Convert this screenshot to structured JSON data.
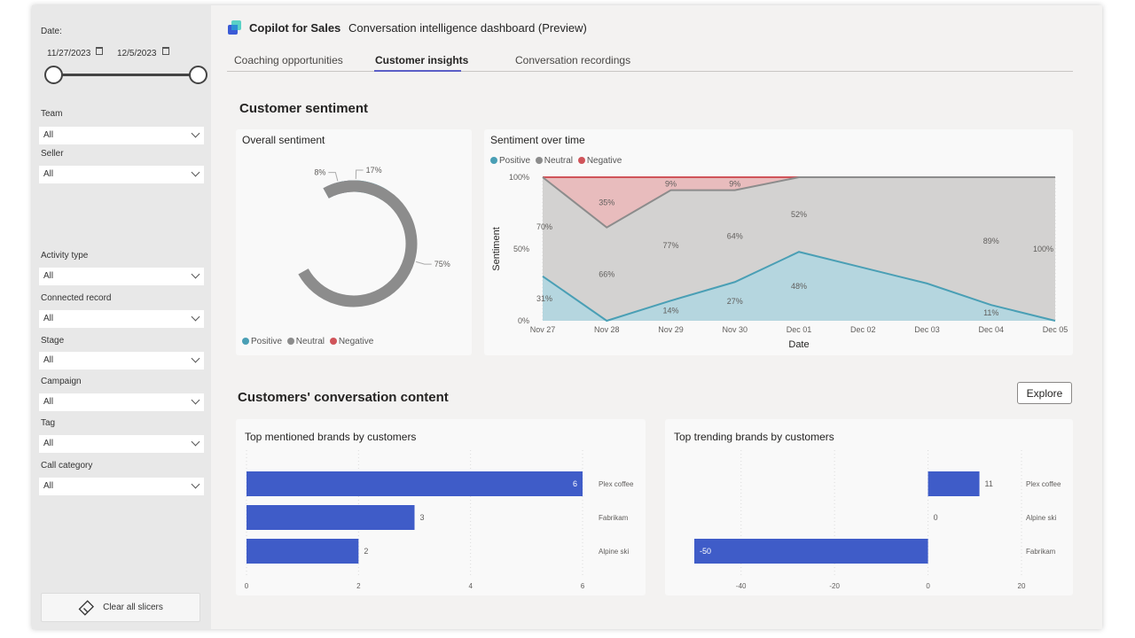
{
  "filters": {
    "date_label": "Date:",
    "start_date": "11/27/2023",
    "end_date": "12/5/2023",
    "slicers": [
      {
        "label": "Team",
        "value": "All"
      },
      {
        "label": "Seller",
        "value": "All"
      },
      {
        "label": "Activity type",
        "value": "All"
      },
      {
        "label": "Connected record",
        "value": "All"
      },
      {
        "label": "Stage",
        "value": "All"
      },
      {
        "label": "Campaign",
        "value": "All"
      },
      {
        "label": "Tag",
        "value": "All"
      },
      {
        "label": "Call category",
        "value": "All"
      }
    ],
    "clear_label": "Clear all slicers"
  },
  "header": {
    "brand": "Copilot for Sales",
    "subtitle": "Conversation intelligence dashboard  (Preview)"
  },
  "tabs": [
    {
      "label": "Coaching opportunities"
    },
    {
      "label": "Customer insights"
    },
    {
      "label": "Conversation recordings"
    }
  ],
  "active_tab": "Customer insights",
  "sections": {
    "sentiment_title": "Customer sentiment",
    "content_title": "Customers' conversation content",
    "explore_label": "Explore"
  },
  "colors": {
    "positive": "#4a9fb5",
    "neutral": "#8c8c8c",
    "negative": "#d0545a",
    "bar": "#3f5cc8",
    "tab_accent": "#5b5fc7"
  },
  "legend": {
    "positive": "Positive",
    "neutral": "Neutral",
    "negative": "Negative"
  },
  "chart_data": [
    {
      "type": "pie",
      "title": "Overall sentiment",
      "categories": [
        "Positive",
        "Neutral",
        "Negative"
      ],
      "values": [
        17,
        75,
        8
      ],
      "data_labels": [
        "17%",
        "75%",
        "8%"
      ]
    },
    {
      "type": "area",
      "title": "Sentiment over time",
      "xlabel": "Date",
      "ylabel": "Sentiment",
      "ylim": [
        0,
        100
      ],
      "y_ticks": [
        "0%",
        "50%",
        "100%"
      ],
      "categories": [
        "Nov 27",
        "Nov 28",
        "Nov 29",
        "Nov 30",
        "Dec 01",
        "Dec 02",
        "Dec 03",
        "Dec 04",
        "Dec 05"
      ],
      "series": [
        {
          "name": "Positive",
          "values": [
            31,
            0,
            14,
            27,
            48,
            37,
            26,
            11,
            0
          ],
          "labels": [
            "31%",
            null,
            "14%",
            "27%",
            "48%",
            null,
            null,
            "11%",
            null
          ]
        },
        {
          "name": "Neutral",
          "values": [
            70,
            66,
            77,
            64,
            52,
            63,
            74,
            89,
            100
          ],
          "labels": [
            "70%",
            "66%",
            "77%",
            "64%",
            "52%",
            null,
            null,
            "89%",
            "100%"
          ]
        },
        {
          "name": "Negative",
          "values": [
            0,
            35,
            9,
            9,
            0,
            0,
            0,
            0,
            0
          ],
          "labels": [
            null,
            "35%",
            "9%",
            "9%",
            null,
            null,
            null,
            null,
            null
          ]
        }
      ]
    },
    {
      "type": "bar",
      "orientation": "horizontal",
      "title": "Top mentioned brands by customers",
      "categories": [
        "Plex coffee",
        "Fabrikam",
        "Alpine ski"
      ],
      "values": [
        6,
        3,
        2
      ],
      "xlim": [
        0,
        6
      ],
      "x_ticks": [
        "0",
        "2",
        "4",
        "6"
      ]
    },
    {
      "type": "bar",
      "orientation": "horizontal",
      "title": "Top trending brands by customers",
      "categories": [
        "Plex coffee",
        "Alpine ski",
        "Fabrikam"
      ],
      "values": [
        11,
        0,
        -50
      ],
      "xlim": [
        -50,
        20
      ],
      "x_ticks": [
        "-40",
        "-20",
        "0",
        "20"
      ]
    }
  ]
}
